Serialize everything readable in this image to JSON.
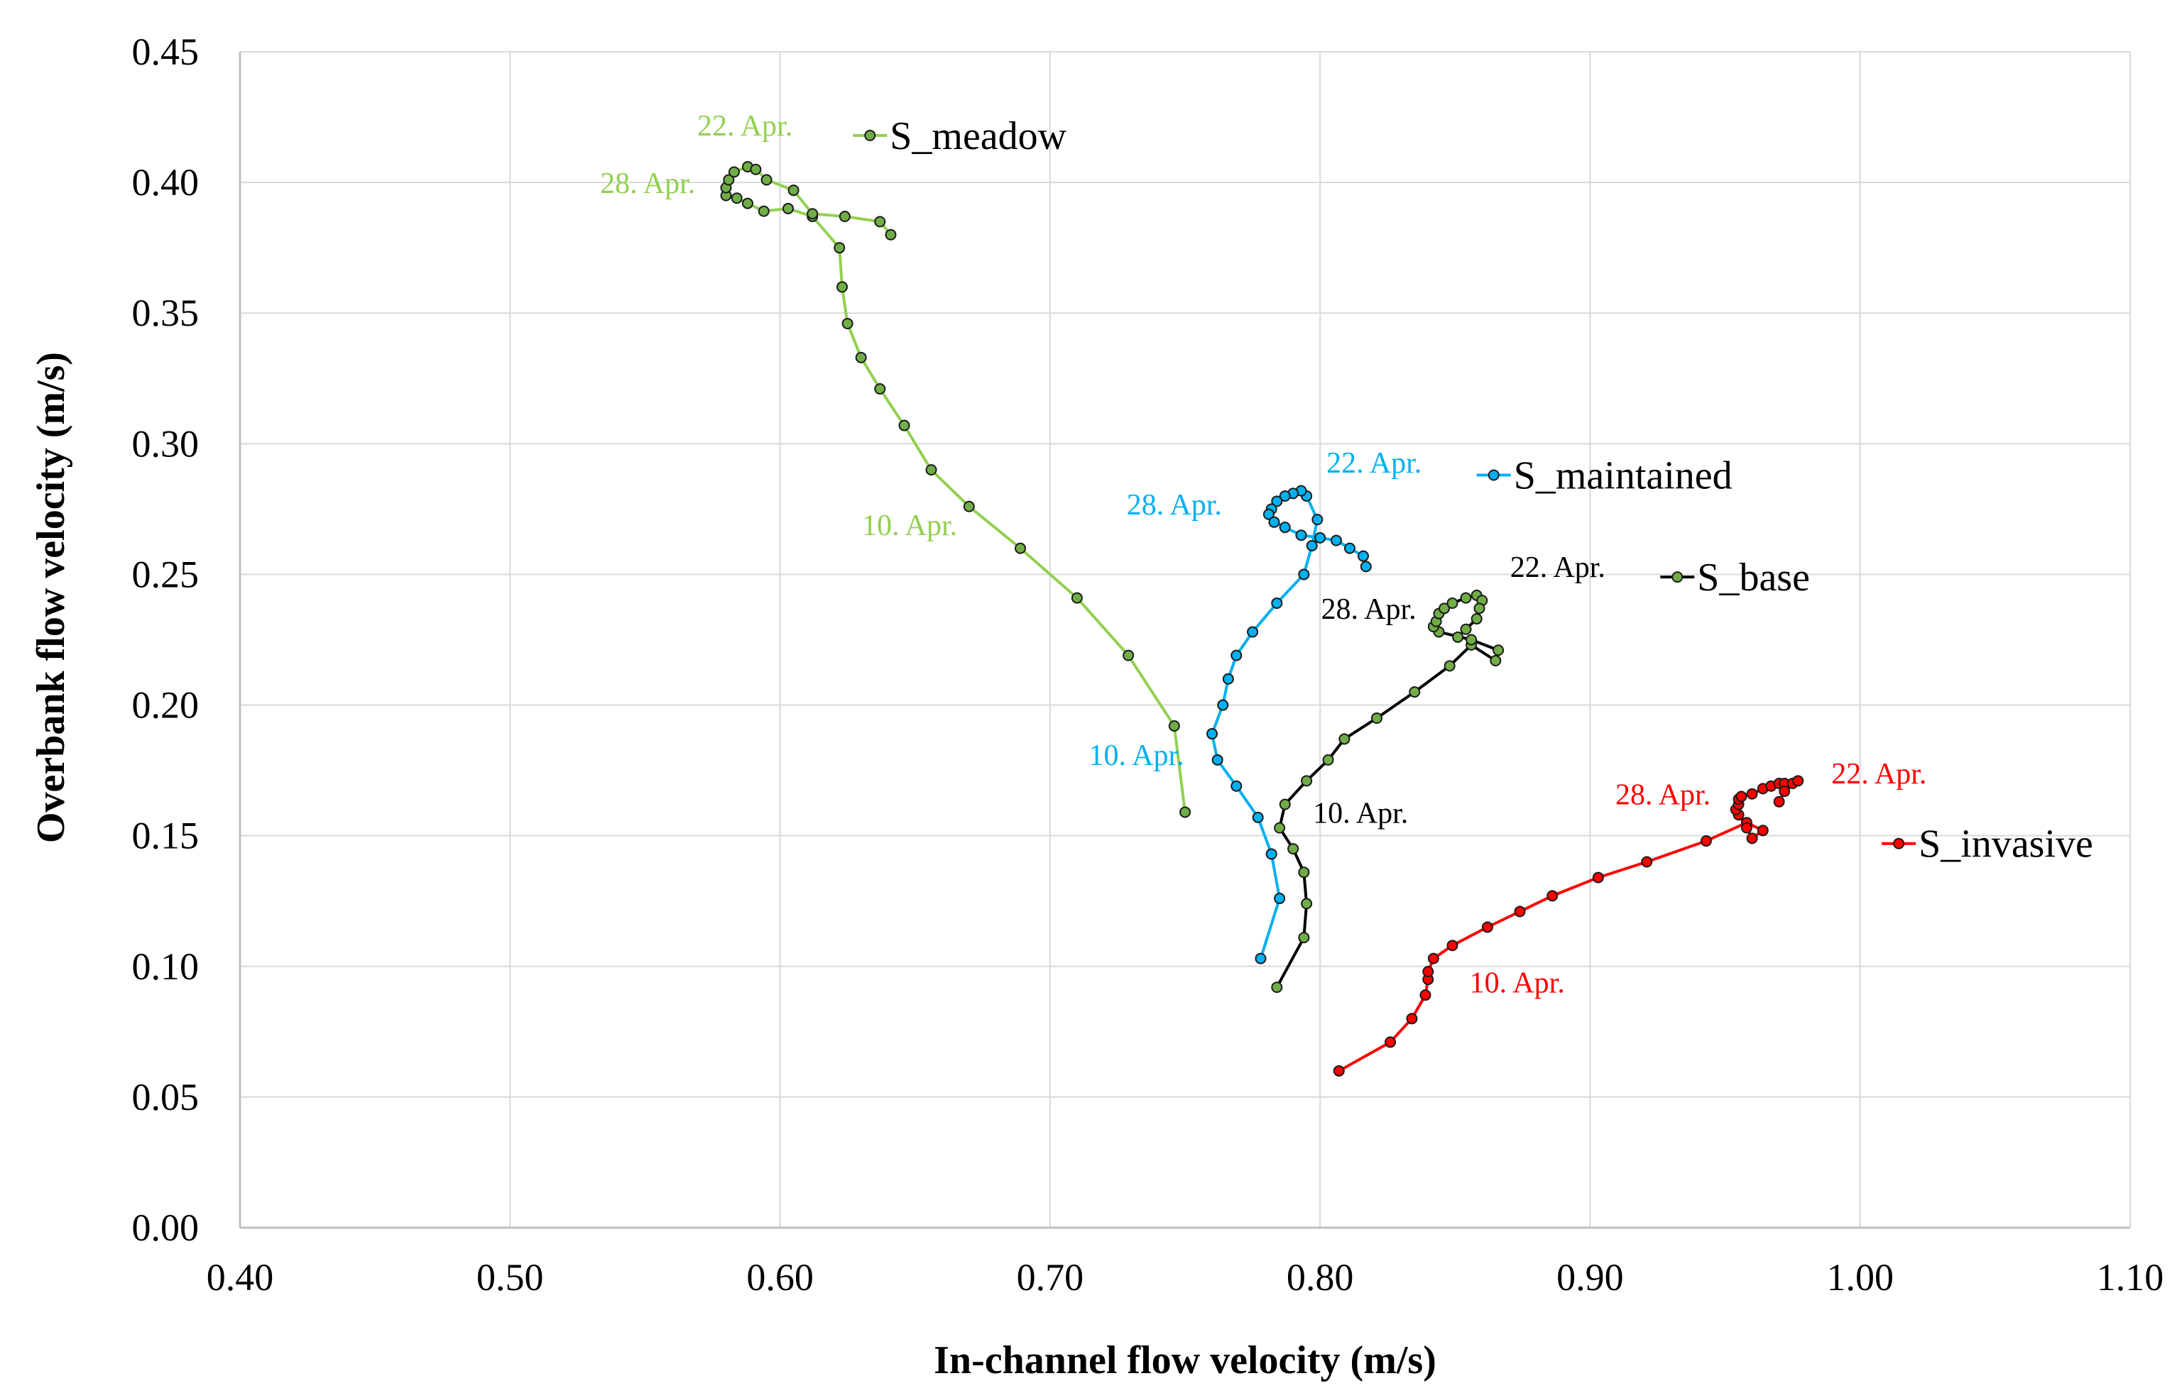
{
  "chart_data": {
    "type": "scatter",
    "title": "",
    "xlabel": "In-channel flow velocity (m/s)",
    "ylabel": "Overbank flow velocity  (m/s)",
    "xlim": [
      0.4,
      1.1
    ],
    "ylim": [
      0.0,
      0.45
    ],
    "xticks": [
      "0.40",
      "0.50",
      "0.60",
      "0.70",
      "0.80",
      "0.90",
      "1.00",
      "1.10"
    ],
    "yticks": [
      "0.00",
      "0.05",
      "0.10",
      "0.15",
      "0.20",
      "0.25",
      "0.30",
      "0.35",
      "0.40",
      "0.45"
    ],
    "grid": true,
    "series": [
      {
        "name": "S_meadow",
        "color": "#92D050",
        "marker_fill": "#70AD47",
        "points": [
          [
            0.75,
            0.159
          ],
          [
            0.746,
            0.192
          ],
          [
            0.729,
            0.219
          ],
          [
            0.71,
            0.241
          ],
          [
            0.689,
            0.26
          ],
          [
            0.67,
            0.276
          ],
          [
            0.656,
            0.29
          ],
          [
            0.646,
            0.307
          ],
          [
            0.637,
            0.321
          ],
          [
            0.63,
            0.333
          ],
          [
            0.625,
            0.346
          ],
          [
            0.623,
            0.36
          ],
          [
            0.622,
            0.375
          ],
          [
            0.612,
            0.387
          ],
          [
            0.603,
            0.39
          ],
          [
            0.594,
            0.389
          ],
          [
            0.588,
            0.392
          ],
          [
            0.584,
            0.394
          ],
          [
            0.58,
            0.395
          ],
          [
            0.58,
            0.398
          ],
          [
            0.581,
            0.401
          ],
          [
            0.583,
            0.404
          ],
          [
            0.588,
            0.406
          ],
          [
            0.591,
            0.405
          ],
          [
            0.595,
            0.401
          ],
          [
            0.605,
            0.397
          ],
          [
            0.612,
            0.388
          ],
          [
            0.624,
            0.387
          ],
          [
            0.637,
            0.385
          ],
          [
            0.641,
            0.38
          ]
        ],
        "annotations": [
          {
            "text": "22. Apr.",
            "x": 0.587,
            "y": 0.418
          },
          {
            "text": "28. Apr.",
            "x": 0.551,
            "y": 0.396
          },
          {
            "text": "10. Apr.",
            "x": 0.648,
            "y": 0.265
          }
        ]
      },
      {
        "name": "S_maintained",
        "color": "#00B0F0",
        "marker_fill": "#00B0F0",
        "points": [
          [
            0.778,
            0.103
          ],
          [
            0.785,
            0.126
          ],
          [
            0.782,
            0.143
          ],
          [
            0.777,
            0.157
          ],
          [
            0.769,
            0.169
          ],
          [
            0.762,
            0.179
          ],
          [
            0.76,
            0.189
          ],
          [
            0.764,
            0.2
          ],
          [
            0.766,
            0.21
          ],
          [
            0.769,
            0.219
          ],
          [
            0.775,
            0.228
          ],
          [
            0.784,
            0.239
          ],
          [
            0.794,
            0.25
          ],
          [
            0.797,
            0.261
          ],
          [
            0.799,
            0.271
          ],
          [
            0.795,
            0.28
          ],
          [
            0.793,
            0.282
          ],
          [
            0.79,
            0.281
          ],
          [
            0.787,
            0.28
          ],
          [
            0.784,
            0.278
          ],
          [
            0.782,
            0.275
          ],
          [
            0.781,
            0.273
          ],
          [
            0.783,
            0.27
          ],
          [
            0.787,
            0.268
          ],
          [
            0.793,
            0.265
          ],
          [
            0.8,
            0.264
          ],
          [
            0.806,
            0.263
          ],
          [
            0.811,
            0.26
          ],
          [
            0.816,
            0.257
          ],
          [
            0.817,
            0.253
          ]
        ],
        "annotations": [
          {
            "text": "22. Apr.",
            "x": 0.82,
            "y": 0.289
          },
          {
            "text": "28. Apr.",
            "x": 0.746,
            "y": 0.273
          },
          {
            "text": "10. Apr.",
            "x": 0.732,
            "y": 0.177
          }
        ]
      },
      {
        "name": "S_base",
        "color": "#000000",
        "marker_fill": "#70AD47",
        "points": [
          [
            0.784,
            0.092
          ],
          [
            0.794,
            0.111
          ],
          [
            0.795,
            0.124
          ],
          [
            0.794,
            0.136
          ],
          [
            0.79,
            0.145
          ],
          [
            0.785,
            0.153
          ],
          [
            0.787,
            0.162
          ],
          [
            0.795,
            0.171
          ],
          [
            0.803,
            0.179
          ],
          [
            0.809,
            0.187
          ],
          [
            0.821,
            0.195
          ],
          [
            0.835,
            0.205
          ],
          [
            0.848,
            0.215
          ],
          [
            0.856,
            0.223
          ],
          [
            0.865,
            0.217
          ],
          [
            0.866,
            0.221
          ],
          [
            0.856,
            0.225
          ],
          [
            0.844,
            0.228
          ],
          [
            0.842,
            0.23
          ],
          [
            0.843,
            0.232
          ],
          [
            0.844,
            0.235
          ],
          [
            0.846,
            0.237
          ],
          [
            0.849,
            0.239
          ],
          [
            0.854,
            0.241
          ],
          [
            0.858,
            0.242
          ],
          [
            0.86,
            0.24
          ],
          [
            0.859,
            0.237
          ],
          [
            0.858,
            0.233
          ],
          [
            0.854,
            0.229
          ],
          [
            0.851,
            0.226
          ]
        ],
        "annotations": [
          {
            "text": "22. Apr.",
            "x": 0.888,
            "y": 0.249
          },
          {
            "text": "28. Apr.",
            "x": 0.818,
            "y": 0.233
          },
          {
            "text": "10. Apr.",
            "x": 0.815,
            "y": 0.155
          }
        ]
      },
      {
        "name": "S_invasive",
        "color": "#FF0000",
        "marker_fill": "#FF0000",
        "points": [
          [
            0.807,
            0.06
          ],
          [
            0.826,
            0.071
          ],
          [
            0.834,
            0.08
          ],
          [
            0.839,
            0.089
          ],
          [
            0.84,
            0.095
          ],
          [
            0.84,
            0.098
          ],
          [
            0.842,
            0.103
          ],
          [
            0.849,
            0.108
          ],
          [
            0.862,
            0.115
          ],
          [
            0.874,
            0.121
          ],
          [
            0.886,
            0.127
          ],
          [
            0.903,
            0.134
          ],
          [
            0.921,
            0.14
          ],
          [
            0.943,
            0.148
          ],
          [
            0.958,
            0.155
          ],
          [
            0.964,
            0.152
          ],
          [
            0.96,
            0.149
          ],
          [
            0.958,
            0.153
          ],
          [
            0.955,
            0.158
          ],
          [
            0.954,
            0.16
          ],
          [
            0.955,
            0.162
          ],
          [
            0.955,
            0.164
          ],
          [
            0.956,
            0.165
          ],
          [
            0.96,
            0.166
          ],
          [
            0.964,
            0.168
          ],
          [
            0.967,
            0.169
          ],
          [
            0.97,
            0.17
          ],
          [
            0.972,
            0.17
          ],
          [
            0.975,
            0.17
          ],
          [
            0.977,
            0.171
          ],
          [
            0.972,
            0.167
          ],
          [
            0.97,
            0.163
          ]
        ],
        "annotations": [
          {
            "text": "22. Apr.",
            "x": 1.007,
            "y": 0.17
          },
          {
            "text": "28. Apr.",
            "x": 0.927,
            "y": 0.162
          },
          {
            "text": "10. Apr.",
            "x": 0.873,
            "y": 0.09
          }
        ]
      }
    ],
    "legend_entries": [
      {
        "series": "S_meadow",
        "x": 0.627,
        "y": 0.418
      },
      {
        "series": "S_maintained",
        "x": 0.858,
        "y": 0.288
      },
      {
        "series": "S_base",
        "x": 0.926,
        "y": 0.249
      },
      {
        "series": "S_invasive",
        "x": 1.008,
        "y": 0.147
      }
    ]
  }
}
